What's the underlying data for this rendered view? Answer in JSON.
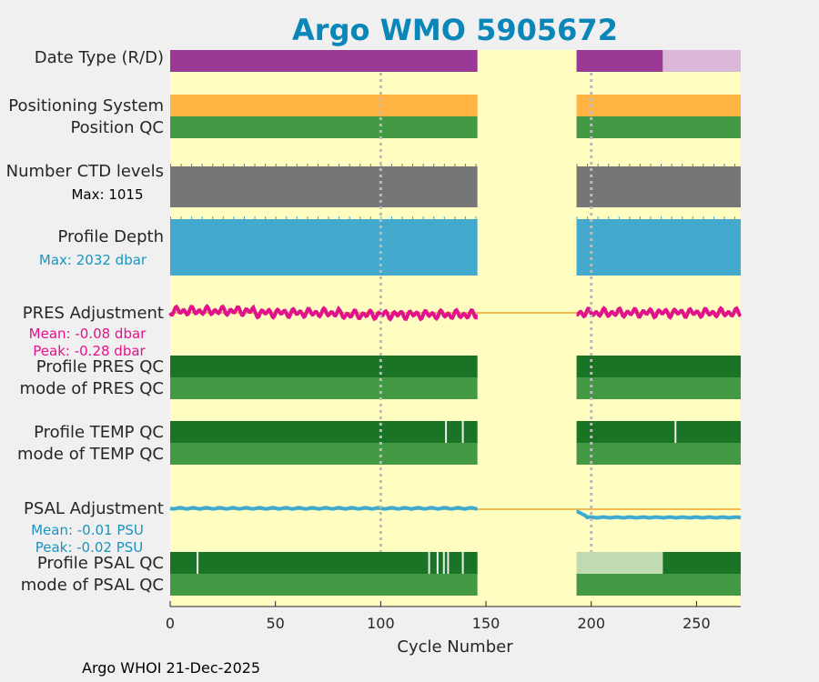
{
  "chart_data": {
    "type": "timeline",
    "title": "Argo WMO 5905672",
    "xlabel": "Cycle Number",
    "xlim": [
      0,
      271
    ],
    "xticks": [
      0,
      50,
      100,
      150,
      200,
      250
    ],
    "gap": [
      146,
      193
    ],
    "reference_lines": [
      100,
      200
    ],
    "rows": [
      {
        "label": "Date Type (R/D)",
        "segments": [
          {
            "from": 0,
            "to": 146,
            "color": "#9a3a96"
          },
          {
            "from": 193,
            "to": 234,
            "color": "#9a3a96"
          },
          {
            "from": 234,
            "to": 271,
            "color": "#dbb8da"
          }
        ]
      },
      {
        "label": "Positioning System",
        "segments": [
          {
            "from": 0,
            "to": 146,
            "color": "#ffb443"
          },
          {
            "from": 193,
            "to": 271,
            "color": "#ffb443"
          }
        ]
      },
      {
        "label": "Position QC",
        "segments": [
          {
            "from": 0,
            "to": 146,
            "color": "#449944"
          },
          {
            "from": 193,
            "to": 271,
            "color": "#449944"
          }
        ]
      },
      {
        "label": "Number CTD levels",
        "sub": "Max: 1015",
        "max": 1015,
        "color": "#767676"
      },
      {
        "label": "Profile Depth",
        "sub": "Max: 2032 dbar",
        "max": 2032,
        "unit": "dbar",
        "color": "#44aacd"
      },
      {
        "label": "PRES Adjustment",
        "mean_label": "Mean: -0.08 dbar",
        "peak_label": "Peak: -0.28 dbar",
        "mean": -0.08,
        "peak": -0.28,
        "unit": "dbar",
        "color": "#e0138c"
      },
      {
        "label": "Profile PRES QC",
        "segments": [
          {
            "from": 0,
            "to": 146,
            "color": "#1a7425"
          },
          {
            "from": 193,
            "to": 271,
            "color": "#1a7425"
          }
        ]
      },
      {
        "label": "mode of PRES QC",
        "segments": [
          {
            "from": 0,
            "to": 146,
            "color": "#449944"
          },
          {
            "from": 193,
            "to": 271,
            "color": "#449944"
          }
        ]
      },
      {
        "label": "Profile TEMP QC",
        "segments": [
          {
            "from": 0,
            "to": 146,
            "color": "#1a7425"
          },
          {
            "from": 193,
            "to": 271,
            "color": "#1a7425"
          }
        ],
        "marks": [
          131,
          139,
          240
        ]
      },
      {
        "label": "mode of TEMP QC",
        "segments": [
          {
            "from": 0,
            "to": 146,
            "color": "#449944"
          },
          {
            "from": 193,
            "to": 271,
            "color": "#449944"
          }
        ]
      },
      {
        "label": "PSAL Adjustment",
        "mean_label": "Mean: -0.01 PSU",
        "peak_label": "Peak: -0.02 PSU",
        "mean": -0.01,
        "peak": -0.02,
        "unit": "PSU",
        "color": "#3daad0"
      },
      {
        "label": "Profile PSAL QC",
        "segments": [
          {
            "from": 0,
            "to": 146,
            "color": "#1a7425"
          },
          {
            "from": 193,
            "to": 234,
            "color": "#c0dbb2"
          },
          {
            "from": 234,
            "to": 271,
            "color": "#1a7425"
          }
        ],
        "marks": [
          13,
          123,
          127,
          130,
          132,
          139
        ]
      },
      {
        "label": "mode of PSAL QC",
        "segments": [
          {
            "from": 0,
            "to": 146,
            "color": "#449944"
          },
          {
            "from": 193,
            "to": 271,
            "color": "#449944"
          }
        ]
      }
    ]
  },
  "colors": {
    "background": "#fffdc0",
    "figure": "#f0f0f0",
    "title": "#0a87b8",
    "reference_line": "#bbbbbb",
    "baseline": "#f5b951"
  },
  "footer": "Argo WHOI 21-Dec-2025"
}
